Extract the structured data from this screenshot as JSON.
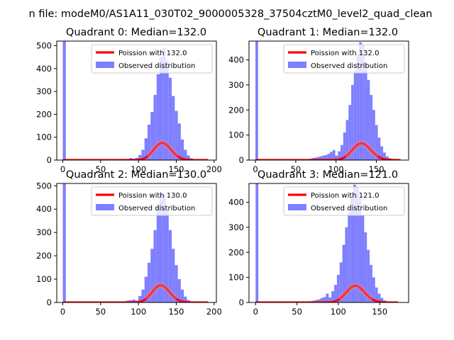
{
  "figure": {
    "suptitle": "n file: modeM0/AS1A11_030T02_9000005328_37504cztM0_level2_quad_clean"
  },
  "colors": {
    "hist": "#7f7fff",
    "poisson": "#ff0000",
    "axes": "#000000",
    "background": "#ffffff"
  },
  "chart_data": [
    {
      "type": "bar",
      "title": "Quadrant 0: Median=132.0",
      "xlim": [
        -8,
        203
      ],
      "ylim": [
        0,
        520
      ],
      "xticks": [
        0,
        50,
        100,
        150,
        200
      ],
      "xtick_labels": [
        "0",
        "50",
        "100",
        "150",
        "200"
      ],
      "yticks": [
        0,
        100,
        200,
        300,
        400,
        500
      ],
      "ytick_labels": [
        "0",
        "100",
        "200",
        "300",
        "400",
        "500"
      ],
      "legend": [
        "Poission with 132.0",
        "Observed distribution"
      ],
      "legend_position": "upper-right",
      "grid": false,
      "hist": {
        "bin_width": 4,
        "bins": [
          [
            0,
            520
          ],
          [
            76,
            3
          ],
          [
            80,
            5
          ],
          [
            84,
            4
          ],
          [
            88,
            9
          ],
          [
            92,
            6
          ],
          [
            96,
            10
          ],
          [
            100,
            22
          ],
          [
            104,
            45
          ],
          [
            108,
            95
          ],
          [
            112,
            155
          ],
          [
            116,
            210
          ],
          [
            120,
            285
          ],
          [
            124,
            375
          ],
          [
            128,
            450
          ],
          [
            132,
            490
          ],
          [
            136,
            435
          ],
          [
            140,
            360
          ],
          [
            144,
            280
          ],
          [
            148,
            215
          ],
          [
            152,
            160
          ],
          [
            156,
            90
          ],
          [
            160,
            45
          ],
          [
            164,
            20
          ],
          [
            168,
            8
          ],
          [
            172,
            3
          ]
        ]
      },
      "series": [
        {
          "name": "Poission with 132.0",
          "lambda": 132.0,
          "scale": 2160,
          "x_range": [
            0,
            192
          ]
        }
      ]
    },
    {
      "type": "bar",
      "title": "Quadrant 1: Median=132.0",
      "xlim": [
        -8,
        190
      ],
      "ylim": [
        0,
        475
      ],
      "xticks": [
        0,
        50,
        100,
        150
      ],
      "xtick_labels": [
        "0",
        "50",
        "100",
        "150"
      ],
      "yticks": [
        0,
        100,
        200,
        300,
        400
      ],
      "ytick_labels": [
        "0",
        "100",
        "200",
        "300",
        "400"
      ],
      "legend": [
        "Poission with 132.0",
        "Observed distribution"
      ],
      "legend_position": "upper-right",
      "grid": false,
      "hist": {
        "bin_width": 3.3,
        "bins": [
          [
            0,
            475
          ],
          [
            66,
            5
          ],
          [
            69.3,
            8
          ],
          [
            72.6,
            10
          ],
          [
            75.9,
            12
          ],
          [
            79.2,
            15
          ],
          [
            82.5,
            18
          ],
          [
            85.8,
            20
          ],
          [
            89.1,
            25
          ],
          [
            92.4,
            33
          ],
          [
            95.7,
            40
          ],
          [
            99,
            18
          ],
          [
            102.3,
            35
          ],
          [
            105.6,
            60
          ],
          [
            108.9,
            110
          ],
          [
            112.2,
            160
          ],
          [
            115.5,
            220
          ],
          [
            118.8,
            300
          ],
          [
            122.1,
            360
          ],
          [
            125.4,
            420
          ],
          [
            128.7,
            470
          ],
          [
            132,
            460
          ],
          [
            135.3,
            390
          ],
          [
            138.6,
            320
          ],
          [
            141.9,
            260
          ],
          [
            145.2,
            200
          ],
          [
            148.5,
            140
          ],
          [
            151.8,
            90
          ],
          [
            155.1,
            55
          ],
          [
            158.4,
            30
          ],
          [
            161.7,
            15
          ],
          [
            165,
            8
          ],
          [
            168.3,
            4
          ]
        ]
      },
      "series": [
        {
          "name": "Poission with 132.0",
          "lambda": 132.0,
          "scale": 1920,
          "x_range": [
            0,
            180
          ]
        }
      ]
    },
    {
      "type": "bar",
      "title": "Quadrant 2: Median=130.0",
      "xlim": [
        -8,
        203
      ],
      "ylim": [
        0,
        510
      ],
      "xticks": [
        0,
        50,
        100,
        150,
        200
      ],
      "xtick_labels": [
        "0",
        "50",
        "100",
        "150",
        "200"
      ],
      "yticks": [
        0,
        100,
        200,
        300,
        400,
        500
      ],
      "ytick_labels": [
        "0",
        "100",
        "200",
        "300",
        "400",
        "500"
      ],
      "legend": [
        "Poission with 130.0",
        "Observed distribution"
      ],
      "legend_position": "upper-right",
      "grid": false,
      "hist": {
        "bin_width": 4,
        "bins": [
          [
            0,
            510
          ],
          [
            76,
            3
          ],
          [
            80,
            5
          ],
          [
            84,
            8
          ],
          [
            88,
            10
          ],
          [
            92,
            12
          ],
          [
            96,
            8
          ],
          [
            100,
            28
          ],
          [
            104,
            55
          ],
          [
            108,
            110
          ],
          [
            112,
            170
          ],
          [
            116,
            230
          ],
          [
            120,
            310
          ],
          [
            124,
            420
          ],
          [
            128,
            465
          ],
          [
            132,
            460
          ],
          [
            136,
            395
          ],
          [
            140,
            310
          ],
          [
            144,
            230
          ],
          [
            148,
            160
          ],
          [
            152,
            100
          ],
          [
            156,
            55
          ],
          [
            160,
            25
          ],
          [
            164,
            10
          ],
          [
            168,
            4
          ]
        ]
      },
      "series": [
        {
          "name": "Poission with 130.0",
          "lambda": 130.0,
          "scale": 2100,
          "x_range": [
            0,
            192
          ]
        }
      ]
    },
    {
      "type": "bar",
      "title": "Quadrant 3: Median=121.0",
      "xlim": [
        -8,
        185
      ],
      "ylim": [
        0,
        475
      ],
      "xticks": [
        0,
        50,
        100,
        150
      ],
      "xtick_labels": [
        "0",
        "50",
        "100",
        "150"
      ],
      "yticks": [
        0,
        100,
        200,
        300,
        400
      ],
      "ytick_labels": [
        "0",
        "100",
        "200",
        "300",
        "400"
      ],
      "legend": [
        "Poission with 121.0",
        "Observed distribution"
      ],
      "legend_position": "upper-right",
      "grid": false,
      "hist": {
        "bin_width": 3.3,
        "bins": [
          [
            0,
            475
          ],
          [
            62,
            3
          ],
          [
            65.3,
            5
          ],
          [
            68.6,
            7
          ],
          [
            71.9,
            10
          ],
          [
            75.2,
            12
          ],
          [
            78.5,
            18
          ],
          [
            81.8,
            22
          ],
          [
            85.1,
            35
          ],
          [
            88.4,
            20
          ],
          [
            91.7,
            45
          ],
          [
            95,
            70
          ],
          [
            98.3,
            110
          ],
          [
            101.6,
            160
          ],
          [
            104.9,
            230
          ],
          [
            108.2,
            300
          ],
          [
            111.5,
            360
          ],
          [
            114.8,
            420
          ],
          [
            118.1,
            470
          ],
          [
            121.4,
            460
          ],
          [
            124.7,
            420
          ],
          [
            128,
            350
          ],
          [
            131.3,
            280
          ],
          [
            134.6,
            210
          ],
          [
            137.9,
            150
          ],
          [
            141.2,
            100
          ],
          [
            144.5,
            60
          ],
          [
            147.8,
            35
          ],
          [
            151.1,
            18
          ],
          [
            154.4,
            8
          ],
          [
            157.7,
            4
          ]
        ]
      },
      "series": [
        {
          "name": "Poission with 121.0",
          "lambda": 121.0,
          "scale": 1840,
          "x_range": [
            0,
            172
          ]
        }
      ]
    }
  ]
}
